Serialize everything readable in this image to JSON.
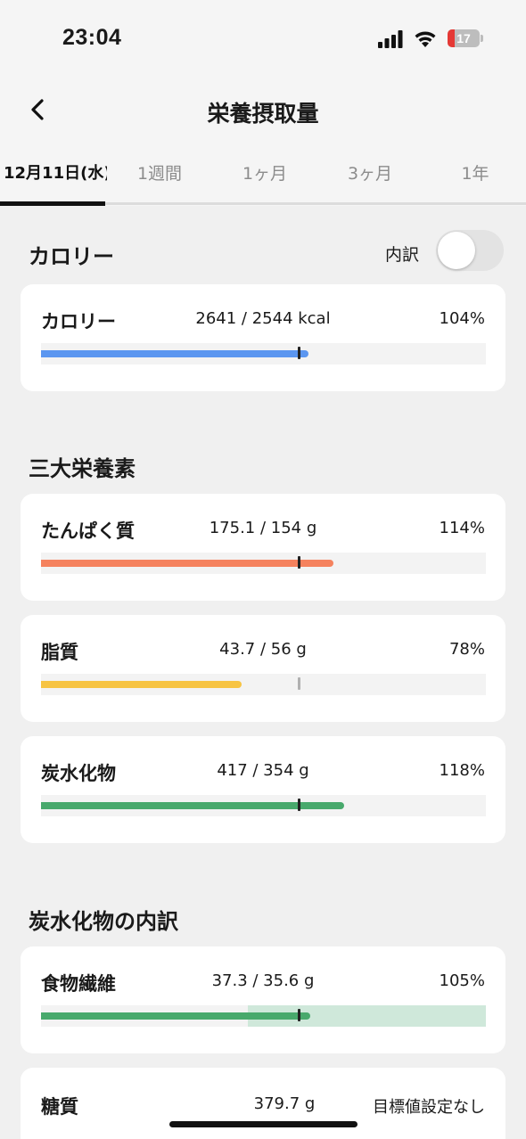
{
  "status_bar": {
    "time": "23:04",
    "battery": "17"
  },
  "header": {
    "title": "栄養摂取量"
  },
  "tabs": [
    {
      "label": "12月11日(水)",
      "active": true
    },
    {
      "label": "1週間",
      "active": false
    },
    {
      "label": "1ヶ月",
      "active": false
    },
    {
      "label": "3ヶ月",
      "active": false
    },
    {
      "label": "1年",
      "active": false
    }
  ],
  "sections": {
    "calorie": {
      "title": "カロリー",
      "toggle_label": "内訳",
      "toggle_on": false
    },
    "macros": {
      "title": "三大栄養素"
    },
    "carb_breakdown": {
      "title": "炭水化物の内訳"
    }
  },
  "colors": {
    "calorie": "#5b96f0",
    "protein": "#f5825e",
    "fat": "#f7c443",
    "carb": "#48a96c"
  },
  "nutrients": {
    "calorie": {
      "name": "カロリー",
      "value": "2641 / 2544 kcal",
      "percent": "104%",
      "fill": 1.04
    },
    "protein": {
      "name": "たんぱく質",
      "value": "175.1 / 154 g",
      "percent": "114%",
      "fill": 1.14
    },
    "fat": {
      "name": "脂質",
      "value": "43.7 / 56 g",
      "percent": "78%",
      "fill": 0.78
    },
    "carb": {
      "name": "炭水化物",
      "value": "417 / 354 g",
      "percent": "118%",
      "fill": 1.18
    },
    "fiber": {
      "name": "食物繊維",
      "value": "37.3 / 35.6 g",
      "percent": "105%",
      "fill": 1.05
    },
    "sugar": {
      "name": "糖質",
      "value": "379.7 g",
      "percent": "目標値設定なし"
    }
  }
}
